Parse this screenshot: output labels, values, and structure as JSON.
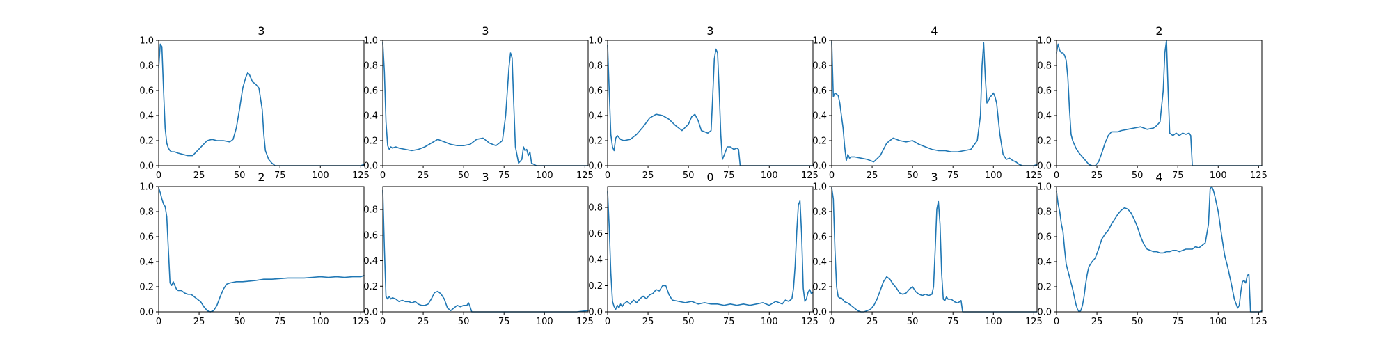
{
  "figure": {
    "line_color": "#1f77b4"
  },
  "chart_data": [
    {
      "type": "line",
      "title": "3",
      "xlim": [
        0,
        127
      ],
      "ylim": [
        0,
        1
      ],
      "xticks": [
        "0",
        "25",
        "50",
        "75",
        "100",
        "125"
      ],
      "yticks": [
        "0.0",
        "0.2",
        "0.4",
        "0.6",
        "0.8",
        "1.0"
      ],
      "x": [
        0,
        1,
        2,
        3,
        4,
        5,
        6,
        7,
        8,
        10,
        12,
        15,
        18,
        21,
        24,
        27,
        30,
        33,
        36,
        40,
        44,
        46,
        48,
        50,
        52,
        54,
        55,
        56,
        57,
        58,
        60,
        62,
        64,
        65,
        66,
        68,
        70,
        72,
        74,
        78,
        85,
        95,
        105,
        115,
        125,
        127
      ],
      "y": [
        0.78,
        0.97,
        0.95,
        0.6,
        0.3,
        0.18,
        0.14,
        0.12,
        0.11,
        0.11,
        0.1,
        0.09,
        0.08,
        0.08,
        0.12,
        0.16,
        0.2,
        0.21,
        0.2,
        0.2,
        0.19,
        0.21,
        0.3,
        0.45,
        0.62,
        0.71,
        0.74,
        0.73,
        0.7,
        0.67,
        0.65,
        0.62,
        0.45,
        0.25,
        0.12,
        0.05,
        0.02,
        0.0,
        0.0,
        0.0,
        0.0,
        0.0,
        0.0,
        0.0,
        0.0,
        0.01
      ]
    },
    {
      "type": "line",
      "title": "3",
      "xlim": [
        0,
        127
      ],
      "ylim": [
        0,
        1
      ],
      "xticks": [
        "0",
        "25",
        "50",
        "75",
        "100",
        "125"
      ],
      "yticks": [
        "0.0",
        "0.2",
        "0.4",
        "0.6",
        "0.8",
        "1.0"
      ],
      "x": [
        0,
        1,
        2,
        3,
        4,
        5,
        6,
        8,
        10,
        14,
        18,
        22,
        26,
        30,
        34,
        38,
        42,
        46,
        50,
        54,
        58,
        62,
        66,
        70,
        74,
        76,
        78,
        79,
        80,
        81,
        82,
        84,
        86,
        87,
        88,
        89,
        90,
        91,
        92,
        95,
        100,
        110,
        120,
        127
      ],
      "y": [
        0.98,
        0.75,
        0.35,
        0.16,
        0.13,
        0.15,
        0.14,
        0.15,
        0.14,
        0.13,
        0.12,
        0.13,
        0.15,
        0.18,
        0.21,
        0.19,
        0.17,
        0.16,
        0.16,
        0.17,
        0.21,
        0.22,
        0.18,
        0.16,
        0.2,
        0.4,
        0.78,
        0.9,
        0.86,
        0.5,
        0.15,
        0.02,
        0.05,
        0.15,
        0.12,
        0.13,
        0.08,
        0.11,
        0.02,
        0.0,
        0.0,
        0.0,
        0.0,
        0.0
      ]
    },
    {
      "type": "line",
      "title": "3",
      "xlim": [
        0,
        127
      ],
      "ylim": [
        0,
        1
      ],
      "xticks": [
        "0",
        "25",
        "50",
        "75",
        "100",
        "125"
      ],
      "yticks": [
        "0.0",
        "0.2",
        "0.4",
        "0.6",
        "0.8",
        "1.0"
      ],
      "x": [
        0,
        1,
        2,
        3,
        4,
        5,
        6,
        8,
        10,
        14,
        18,
        22,
        26,
        30,
        34,
        38,
        42,
        46,
        50,
        52,
        54,
        56,
        58,
        60,
        62,
        64,
        65,
        66,
        67,
        68,
        69,
        70,
        71,
        72,
        74,
        76,
        78,
        80,
        81,
        82,
        90,
        100,
        110,
        120,
        127
      ],
      "y": [
        0.96,
        0.6,
        0.25,
        0.15,
        0.12,
        0.22,
        0.24,
        0.21,
        0.2,
        0.21,
        0.25,
        0.31,
        0.38,
        0.41,
        0.4,
        0.37,
        0.32,
        0.28,
        0.33,
        0.39,
        0.41,
        0.36,
        0.28,
        0.27,
        0.26,
        0.28,
        0.55,
        0.85,
        0.93,
        0.9,
        0.6,
        0.25,
        0.05,
        0.08,
        0.15,
        0.15,
        0.13,
        0.14,
        0.13,
        0.0,
        0.0,
        0.0,
        0.0,
        0.0,
        0.0
      ]
    },
    {
      "type": "line",
      "title": "4",
      "xlim": [
        0,
        127
      ],
      "ylim": [
        0,
        1
      ],
      "xticks": [
        "0",
        "25",
        "50",
        "75",
        "100",
        "125"
      ],
      "yticks": [
        "0.0",
        "0.2",
        "0.4",
        "0.6",
        "0.8",
        "1.0"
      ],
      "x": [
        0,
        1,
        2,
        3,
        4,
        5,
        6,
        7,
        8,
        9,
        10,
        11,
        12,
        14,
        18,
        22,
        26,
        30,
        34,
        38,
        42,
        46,
        50,
        54,
        58,
        62,
        66,
        70,
        74,
        78,
        82,
        86,
        90,
        92,
        93,
        94,
        95,
        96,
        97,
        98,
        99,
        100,
        101,
        102,
        104,
        106,
        108,
        110,
        112,
        114,
        116,
        118,
        120,
        125,
        127
      ],
      "y": [
        0.99,
        0.55,
        0.58,
        0.57,
        0.56,
        0.5,
        0.4,
        0.3,
        0.15,
        0.04,
        0.09,
        0.06,
        0.07,
        0.07,
        0.06,
        0.05,
        0.03,
        0.08,
        0.18,
        0.22,
        0.2,
        0.19,
        0.2,
        0.17,
        0.15,
        0.13,
        0.12,
        0.12,
        0.11,
        0.11,
        0.12,
        0.13,
        0.2,
        0.4,
        0.8,
        0.98,
        0.7,
        0.5,
        0.52,
        0.55,
        0.56,
        0.58,
        0.55,
        0.5,
        0.25,
        0.09,
        0.05,
        0.06,
        0.04,
        0.03,
        0.01,
        0.0,
        0.0,
        0.0,
        0.01
      ]
    },
    {
      "type": "line",
      "title": "2",
      "xlim": [
        0,
        127
      ],
      "ylim": [
        0,
        1
      ],
      "xticks": [
        "0",
        "25",
        "50",
        "75",
        "100",
        "125"
      ],
      "yticks": [
        "0.0",
        "0.2",
        "0.4",
        "0.6",
        "0.8",
        "1.0"
      ],
      "x": [
        0,
        1,
        2,
        3,
        4,
        5,
        6,
        7,
        8,
        9,
        10,
        12,
        14,
        16,
        18,
        20,
        22,
        24,
        26,
        28,
        30,
        32,
        34,
        36,
        38,
        40,
        44,
        48,
        52,
        56,
        60,
        62,
        64,
        66,
        67,
        68,
        69,
        70,
        72,
        74,
        76,
        78,
        80,
        82,
        83,
        84,
        90,
        100,
        110,
        120,
        127
      ],
      "y": [
        0.9,
        0.97,
        0.92,
        0.9,
        0.9,
        0.88,
        0.84,
        0.7,
        0.45,
        0.25,
        0.2,
        0.14,
        0.1,
        0.07,
        0.04,
        0.01,
        0.0,
        0.0,
        0.03,
        0.1,
        0.18,
        0.24,
        0.27,
        0.27,
        0.27,
        0.28,
        0.29,
        0.3,
        0.31,
        0.29,
        0.3,
        0.32,
        0.35,
        0.6,
        0.9,
        1.0,
        0.6,
        0.26,
        0.24,
        0.26,
        0.24,
        0.26,
        0.25,
        0.26,
        0.24,
        0.0,
        0.0,
        0.0,
        0.0,
        0.0,
        0.0
      ]
    },
    {
      "type": "line",
      "title": "2",
      "xlim": [
        0,
        127
      ],
      "ylim": [
        0,
        1
      ],
      "xticks": [
        "0",
        "25",
        "50",
        "75",
        "100",
        "125"
      ],
      "yticks": [
        "0.0",
        "0.2",
        "0.4",
        "0.6",
        "0.8",
        "1.0"
      ],
      "x": [
        0,
        1,
        2,
        3,
        4,
        5,
        6,
        7,
        8,
        9,
        10,
        11,
        12,
        14,
        16,
        18,
        20,
        22,
        24,
        26,
        28,
        30,
        32,
        34,
        36,
        38,
        40,
        42,
        44,
        48,
        52,
        56,
        60,
        65,
        70,
        75,
        80,
        85,
        90,
        95,
        100,
        105,
        110,
        115,
        120,
        125,
        127
      ],
      "y": [
        0.99,
        0.95,
        0.9,
        0.86,
        0.84,
        0.76,
        0.5,
        0.23,
        0.21,
        0.24,
        0.21,
        0.18,
        0.17,
        0.17,
        0.15,
        0.14,
        0.14,
        0.12,
        0.1,
        0.08,
        0.04,
        0.01,
        0.0,
        0.01,
        0.05,
        0.12,
        0.18,
        0.22,
        0.23,
        0.24,
        0.24,
        0.245,
        0.25,
        0.26,
        0.26,
        0.265,
        0.27,
        0.27,
        0.27,
        0.275,
        0.28,
        0.275,
        0.28,
        0.275,
        0.28,
        0.28,
        0.29
      ]
    },
    {
      "type": "line",
      "title": "3",
      "xlim": [
        0,
        127
      ],
      "ylim": [
        0,
        0.98
      ],
      "xticks": [
        "0",
        "25",
        "50",
        "75",
        "100",
        "125"
      ],
      "yticks": [
        "0.0",
        "0.2",
        "0.4",
        "0.6",
        "0.8"
      ],
      "x": [
        0,
        1,
        2,
        3,
        4,
        5,
        6,
        8,
        10,
        12,
        14,
        16,
        18,
        20,
        22,
        24,
        26,
        28,
        30,
        32,
        34,
        36,
        38,
        40,
        42,
        44,
        46,
        48,
        50,
        52,
        53,
        54,
        55,
        60,
        70,
        80,
        90,
        100,
        110,
        120,
        127
      ],
      "y": [
        0.95,
        0.5,
        0.12,
        0.1,
        0.12,
        0.1,
        0.11,
        0.1,
        0.08,
        0.09,
        0.08,
        0.08,
        0.07,
        0.08,
        0.06,
        0.05,
        0.05,
        0.06,
        0.1,
        0.15,
        0.16,
        0.14,
        0.1,
        0.03,
        0.01,
        0.03,
        0.05,
        0.04,
        0.05,
        0.05,
        0.07,
        0.04,
        0.0,
        0.0,
        0.0,
        0.0,
        0.0,
        0.0,
        0.0,
        0.0,
        0.01
      ]
    },
    {
      "type": "line",
      "title": "0",
      "xlim": [
        0,
        127
      ],
      "ylim": [
        0,
        0.96
      ],
      "xticks": [
        "0",
        "25",
        "50",
        "75",
        "100",
        "125"
      ],
      "yticks": [
        "0.0",
        "0.2",
        "0.4",
        "0.6",
        "0.8"
      ],
      "x": [
        0,
        1,
        2,
        3,
        4,
        5,
        6,
        7,
        8,
        9,
        10,
        12,
        14,
        16,
        18,
        20,
        22,
        24,
        26,
        28,
        30,
        32,
        34,
        36,
        38,
        40,
        44,
        48,
        52,
        56,
        60,
        64,
        68,
        72,
        76,
        80,
        84,
        88,
        92,
        96,
        100,
        104,
        108,
        110,
        112,
        114,
        115,
        116,
        117,
        118,
        119,
        120,
        121,
        122,
        123,
        124,
        125,
        126,
        127
      ],
      "y": [
        0.92,
        0.65,
        0.3,
        0.08,
        0.04,
        0.02,
        0.05,
        0.03,
        0.06,
        0.04,
        0.06,
        0.08,
        0.06,
        0.09,
        0.07,
        0.1,
        0.12,
        0.1,
        0.13,
        0.14,
        0.17,
        0.16,
        0.2,
        0.2,
        0.13,
        0.09,
        0.08,
        0.07,
        0.08,
        0.06,
        0.07,
        0.06,
        0.06,
        0.05,
        0.06,
        0.05,
        0.06,
        0.05,
        0.06,
        0.07,
        0.05,
        0.08,
        0.06,
        0.09,
        0.08,
        0.1,
        0.18,
        0.35,
        0.62,
        0.82,
        0.85,
        0.6,
        0.18,
        0.08,
        0.1,
        0.15,
        0.17,
        0.14,
        0.15
      ]
    },
    {
      "type": "line",
      "title": "3",
      "xlim": [
        0,
        127
      ],
      "ylim": [
        0,
        1
      ],
      "xticks": [
        "0",
        "25",
        "50",
        "75",
        "100",
        "125"
      ],
      "yticks": [
        "0.0",
        "0.2",
        "0.4",
        "0.6",
        "0.8",
        "1.0"
      ],
      "x": [
        0,
        1,
        2,
        3,
        4,
        5,
        6,
        8,
        10,
        12,
        14,
        16,
        18,
        20,
        22,
        24,
        26,
        28,
        30,
        32,
        34,
        36,
        38,
        40,
        42,
        44,
        46,
        48,
        50,
        52,
        54,
        56,
        58,
        60,
        62,
        63,
        64,
        65,
        66,
        67,
        68,
        69,
        70,
        71,
        72,
        74,
        76,
        78,
        80,
        81,
        90,
        100,
        110,
        120,
        127
      ],
      "y": [
        0.99,
        0.9,
        0.5,
        0.2,
        0.12,
        0.11,
        0.11,
        0.08,
        0.07,
        0.05,
        0.03,
        0.01,
        0.0,
        0.0,
        0.01,
        0.02,
        0.05,
        0.1,
        0.17,
        0.24,
        0.28,
        0.26,
        0.22,
        0.19,
        0.15,
        0.14,
        0.15,
        0.18,
        0.2,
        0.16,
        0.14,
        0.13,
        0.14,
        0.13,
        0.14,
        0.2,
        0.5,
        0.82,
        0.88,
        0.7,
        0.3,
        0.1,
        0.09,
        0.12,
        0.1,
        0.1,
        0.08,
        0.07,
        0.09,
        0.0,
        0.0,
        0.0,
        0.0,
        0.0,
        0.0
      ]
    },
    {
      "type": "line",
      "title": "4",
      "xlim": [
        0,
        127
      ],
      "ylim": [
        0,
        1
      ],
      "xticks": [
        "0",
        "25",
        "50",
        "75",
        "100",
        "125"
      ],
      "yticks": [
        "0.0",
        "0.2",
        "0.4",
        "0.6",
        "0.8",
        "1.0"
      ],
      "x": [
        0,
        1,
        2,
        3,
        4,
        5,
        6,
        8,
        10,
        12,
        13,
        14,
        15,
        16,
        17,
        18,
        19,
        20,
        22,
        24,
        26,
        28,
        30,
        32,
        34,
        36,
        38,
        40,
        42,
        44,
        46,
        48,
        50,
        52,
        54,
        56,
        58,
        60,
        62,
        64,
        66,
        68,
        70,
        72,
        74,
        76,
        78,
        80,
        82,
        84,
        86,
        88,
        90,
        92,
        94,
        95,
        96,
        97,
        98,
        100,
        102,
        104,
        106,
        108,
        110,
        112,
        113,
        114,
        115,
        116,
        117,
        118,
        119,
        120,
        122,
        124,
        126,
        127
      ],
      "y": [
        0.96,
        0.86,
        0.8,
        0.7,
        0.64,
        0.5,
        0.38,
        0.28,
        0.18,
        0.06,
        0.02,
        0.0,
        0.01,
        0.05,
        0.12,
        0.22,
        0.3,
        0.36,
        0.4,
        0.43,
        0.5,
        0.58,
        0.62,
        0.65,
        0.7,
        0.74,
        0.78,
        0.81,
        0.83,
        0.82,
        0.79,
        0.74,
        0.68,
        0.6,
        0.54,
        0.5,
        0.49,
        0.48,
        0.48,
        0.47,
        0.47,
        0.48,
        0.48,
        0.49,
        0.49,
        0.48,
        0.49,
        0.5,
        0.5,
        0.5,
        0.52,
        0.51,
        0.53,
        0.55,
        0.7,
        0.98,
        1.0,
        0.97,
        0.92,
        0.8,
        0.62,
        0.45,
        0.35,
        0.23,
        0.1,
        0.03,
        0.05,
        0.16,
        0.24,
        0.25,
        0.23,
        0.29,
        0.3,
        0.0,
        0.0,
        0.0,
        0.0,
        0.01
      ]
    }
  ]
}
